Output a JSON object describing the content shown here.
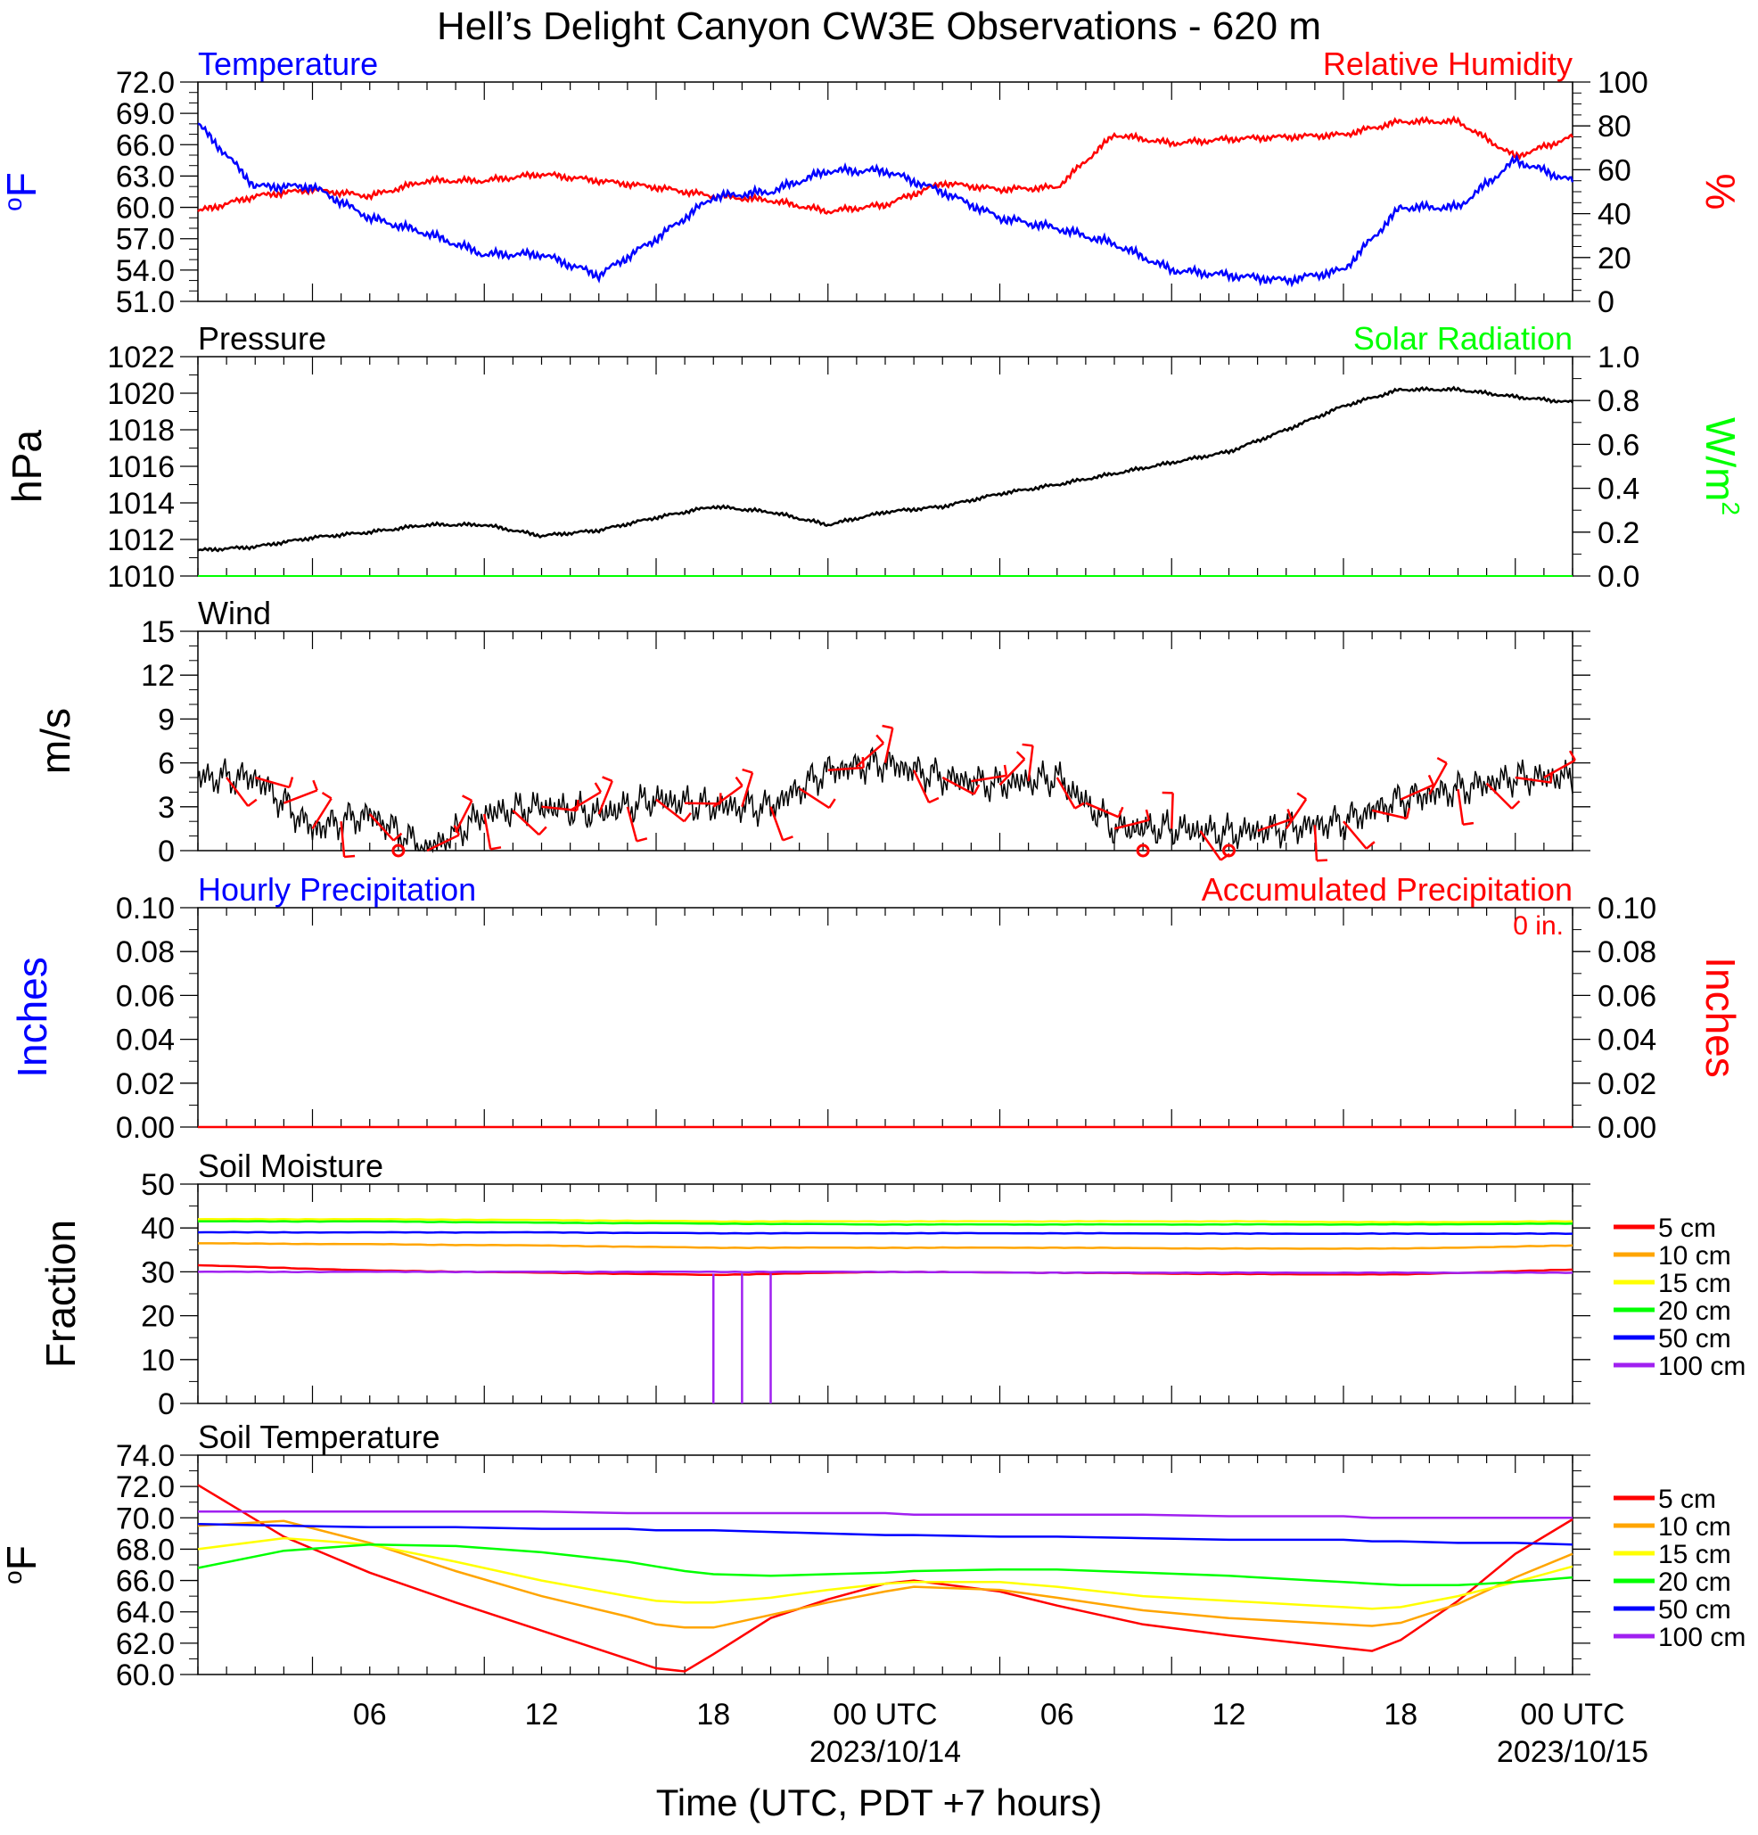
{
  "title": "Hell’s Delight Canyon CW3E Observations - 620 m",
  "x_axis": {
    "label": "Time (UTC, PDT +7 hours)",
    "ticks": [
      "06",
      "12",
      "18",
      "00 UTC",
      "06",
      "12",
      "18",
      "00 UTC"
    ],
    "dates": [
      "2023/10/14",
      "2023/10/15"
    ]
  },
  "precip_total": "0 in.",
  "colors": {
    "temperature": "#0000ff",
    "humidity": "#ff0000",
    "pressure": "#000000",
    "solar": "#00ff00",
    "wind": "#000000",
    "barbs": "#ff0000",
    "hourly_precip": "#0000ff",
    "accum_precip": "#ff0000",
    "depths": [
      "#ff0000",
      "#ffa500",
      "#ffff00",
      "#00ff00",
      "#0000ff",
      "#a020f0"
    ]
  },
  "chart_data": [
    {
      "type": "line",
      "title_left": "Temperature",
      "title_right": "Relative Humidity",
      "ylabel": "oF",
      "ylabel_right": "%",
      "ylim": [
        51,
        72
      ],
      "ylim_right": [
        0,
        100
      ],
      "yticks": [
        "72.0",
        "69.0",
        "66.0",
        "63.0",
        "60.0",
        "57.0",
        "54.0",
        "51.0"
      ],
      "yticks_right": [
        "100",
        "80",
        "60",
        "40",
        "20",
        "0"
      ],
      "x": [
        0,
        2,
        4,
        6,
        8,
        10,
        12,
        14,
        16,
        18,
        20,
        22,
        24,
        26,
        28,
        30,
        32,
        34,
        36,
        38,
        40,
        42,
        44,
        46,
        48
      ],
      "series": [
        {
          "name": "Temperature",
          "values": [
            68,
            62,
            62,
            59,
            57.5,
            55.5,
            55.5,
            53.5,
            57,
            61,
            61.5,
            63.5,
            63.5,
            61.5,
            59,
            58,
            56.5,
            54,
            53.5,
            53,
            54,
            60,
            60,
            64.5,
            62.5
          ]
        },
        {
          "name": "Relative Humidity",
          "values": [
            41,
            48,
            51,
            48,
            55,
            55,
            58,
            55,
            52,
            48,
            46,
            41,
            44,
            54,
            51,
            52,
            76,
            72,
            74,
            75,
            76,
            82,
            82,
            66,
            75
          ]
        }
      ]
    },
    {
      "type": "line",
      "title_left": "Pressure",
      "title_right": "Solar Radiation",
      "ylabel": "hPa",
      "ylabel_right": "W/m2",
      "ylim": [
        1010,
        1022
      ],
      "ylim_right": [
        0,
        1.0
      ],
      "yticks": [
        "1022",
        "1020",
        "1018",
        "1016",
        "1014",
        "1012",
        "1010"
      ],
      "yticks_right": [
        "1.0",
        "0.8",
        "0.6",
        "0.4",
        "0.2",
        "0.0"
      ],
      "x": [
        0,
        2,
        4,
        6,
        8,
        10,
        12,
        14,
        16,
        18,
        20,
        22,
        24,
        26,
        28,
        30,
        32,
        34,
        36,
        38,
        40,
        42,
        44,
        46,
        48
      ],
      "series": [
        {
          "name": "Pressure",
          "values": [
            1011.4,
            1011.6,
            1012.1,
            1012.4,
            1012.8,
            1012.8,
            1012.2,
            1012.5,
            1013.2,
            1013.8,
            1013.5,
            1012.8,
            1013.5,
            1013.8,
            1014.5,
            1015.0,
            1015.6,
            1016.2,
            1016.8,
            1018.0,
            1019.3,
            1020.2,
            1020.2,
            1019.8,
            1019.5
          ]
        },
        {
          "name": "Solar Radiation",
          "values": [
            0,
            0,
            0,
            0,
            0,
            0,
            0,
            0,
            0,
            0,
            0,
            0,
            0,
            0,
            0,
            0,
            0,
            0,
            0,
            0,
            0,
            0,
            0,
            0,
            0
          ]
        }
      ]
    },
    {
      "type": "line",
      "title_left": "Wind",
      "ylabel": "m/s",
      "ylim": [
        0,
        15
      ],
      "yticks": [
        "15",
        "12",
        "9",
        "6",
        "3",
        "0"
      ],
      "x": [
        0,
        2,
        4,
        6,
        8,
        10,
        12,
        14,
        16,
        18,
        20,
        22,
        24,
        26,
        28,
        30,
        32,
        34,
        36,
        38,
        40,
        42,
        44,
        46,
        48
      ],
      "series": [
        {
          "name": "Wind",
          "values": [
            5,
            5,
            1.5,
            2.5,
            0,
            2.5,
            3,
            2.5,
            3.5,
            3,
            3,
            5.5,
            6,
            5,
            4.5,
            5,
            1.5,
            1.5,
            1.2,
            1.5,
            2,
            3.5,
            4.2,
            5,
            5
          ]
        }
      ]
    },
    {
      "type": "line",
      "title_left": "Hourly Precipitation",
      "title_right": "Accumulated Precipitation",
      "ylabel": "Inches",
      "ylabel_right": "Inches",
      "ylim": [
        0,
        0.1
      ],
      "ylim_right": [
        0,
        0.1
      ],
      "yticks": [
        "0.10",
        "0.08",
        "0.06",
        "0.04",
        "0.02",
        "0.00"
      ],
      "yticks_right": [
        "0.10",
        "0.08",
        "0.06",
        "0.04",
        "0.02",
        "0.00"
      ],
      "x": [
        0,
        48
      ],
      "series": [
        {
          "name": "Hourly Precipitation",
          "values": [
            0,
            0
          ]
        },
        {
          "name": "Accumulated Precipitation",
          "values": [
            0,
            0
          ]
        }
      ]
    },
    {
      "type": "line",
      "title_left": "Soil Moisture",
      "ylabel": "Fraction",
      "ylim": [
        0,
        50
      ],
      "yticks": [
        "50",
        "40",
        "30",
        "20",
        "10",
        "0"
      ],
      "x": [
        0,
        6,
        12,
        18,
        24,
        30,
        36,
        42,
        48
      ],
      "series": [
        {
          "name": "5 cm",
          "values": [
            31.5,
            30.3,
            29.8,
            29.3,
            30.0,
            29.8,
            29.5,
            29.4,
            30.5
          ]
        },
        {
          "name": "10 cm",
          "values": [
            36.5,
            36.3,
            36.0,
            35.5,
            35.5,
            35.5,
            35.3,
            35.3,
            36.0
          ]
        },
        {
          "name": "15 cm",
          "values": [
            42.0,
            42.0,
            41.8,
            41.5,
            41.5,
            41.5,
            41.5,
            41.3,
            41.5
          ]
        },
        {
          "name": "20 cm",
          "values": [
            41.5,
            41.5,
            41.2,
            41.0,
            40.8,
            40.8,
            40.8,
            40.8,
            41.0
          ]
        },
        {
          "name": "50 cm",
          "values": [
            39.0,
            39.0,
            39.0,
            38.8,
            38.8,
            38.8,
            38.7,
            38.7,
            38.7
          ]
        },
        {
          "name": "100 cm",
          "values": [
            30.0,
            30.0,
            30.0,
            30.0,
            30.0,
            29.8,
            29.8,
            29.8,
            29.8
          ]
        }
      ]
    },
    {
      "type": "line",
      "title_left": "Soil Temperature",
      "ylabel": "oF",
      "ylim": [
        60,
        74
      ],
      "yticks": [
        "74.0",
        "72.0",
        "70.0",
        "68.0",
        "66.0",
        "64.0",
        "62.0",
        "60.0"
      ],
      "x": [
        0,
        3,
        6,
        9,
        12,
        15,
        16,
        17,
        18,
        20,
        22,
        24,
        25,
        28,
        30,
        33,
        36,
        39,
        40,
        41,
        42,
        44,
        46,
        48
      ],
      "series": [
        {
          "name": "5 cm",
          "values": [
            72.1,
            68.8,
            66.5,
            64.6,
            62.8,
            61.0,
            60.4,
            60.2,
            61.3,
            63.6,
            64.8,
            65.8,
            66.0,
            65.3,
            64.4,
            63.2,
            62.5,
            61.9,
            61.7,
            61.5,
            62.2,
            64.7,
            67.7,
            69.9
          ]
        },
        {
          "name": "10 cm",
          "values": [
            69.5,
            69.8,
            68.4,
            66.6,
            65.0,
            63.7,
            63.2,
            63.0,
            63.0,
            63.8,
            64.6,
            65.3,
            65.6,
            65.4,
            64.9,
            64.1,
            63.6,
            63.3,
            63.2,
            63.1,
            63.3,
            64.5,
            66.2,
            67.7
          ]
        },
        {
          "name": "15 cm",
          "values": [
            68.0,
            68.7,
            68.3,
            67.2,
            66.0,
            65.0,
            64.7,
            64.6,
            64.6,
            64.9,
            65.4,
            65.8,
            65.9,
            65.9,
            65.6,
            65.0,
            64.7,
            64.4,
            64.3,
            64.2,
            64.3,
            65.0,
            65.9,
            66.9
          ]
        },
        {
          "name": "20 cm",
          "values": [
            66.8,
            67.9,
            68.3,
            68.2,
            67.8,
            67.2,
            66.9,
            66.6,
            66.4,
            66.3,
            66.4,
            66.5,
            66.6,
            66.7,
            66.7,
            66.5,
            66.3,
            66.0,
            65.9,
            65.8,
            65.7,
            65.7,
            65.9,
            66.2
          ]
        },
        {
          "name": "50 cm",
          "values": [
            69.6,
            69.5,
            69.4,
            69.4,
            69.3,
            69.3,
            69.2,
            69.2,
            69.2,
            69.1,
            69.0,
            68.9,
            68.9,
            68.8,
            68.8,
            68.7,
            68.6,
            68.6,
            68.6,
            68.5,
            68.5,
            68.4,
            68.4,
            68.3
          ]
        },
        {
          "name": "100 cm",
          "values": [
            70.4,
            70.4,
            70.4,
            70.4,
            70.4,
            70.3,
            70.3,
            70.3,
            70.3,
            70.3,
            70.3,
            70.3,
            70.2,
            70.2,
            70.2,
            70.2,
            70.1,
            70.1,
            70.1,
            70.0,
            70.0,
            70.0,
            70.0,
            70.0
          ]
        }
      ]
    }
  ]
}
